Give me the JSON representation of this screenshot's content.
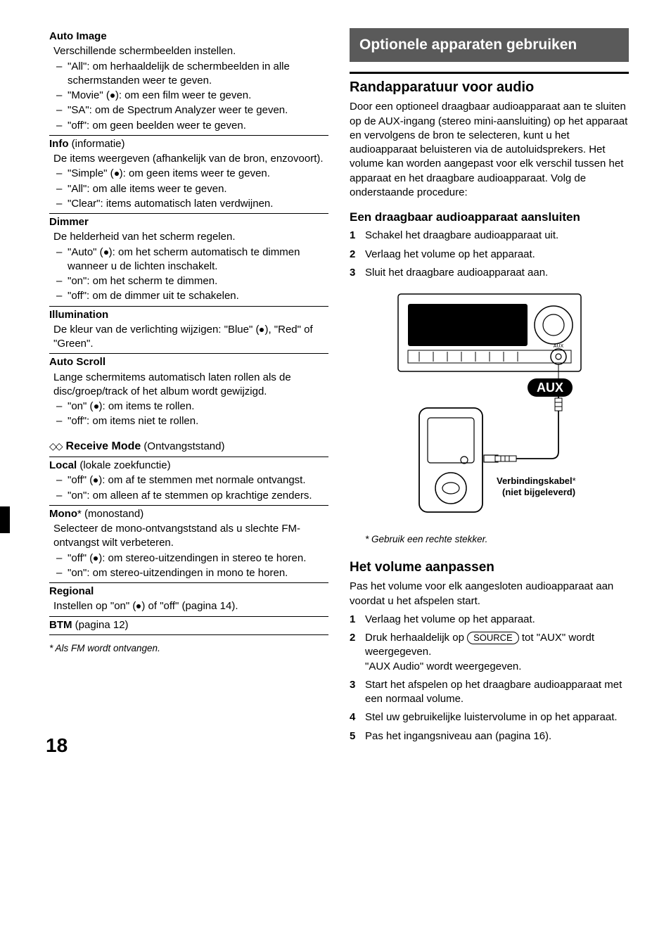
{
  "page_number": "18",
  "left": {
    "auto_image": {
      "title": "Auto Image",
      "desc": "Verschillende schermbeelden instellen.",
      "items": [
        {
          "text_before": "\"All\": om herhaaldelijk de schermbeelden in alle schermstanden weer te geven.",
          "dot": false
        },
        {
          "text_before": "\"Movie\" (",
          "dot": true,
          "text_after": "): om een film weer te geven."
        },
        {
          "text_before": "\"SA\": om de Spectrum Analyzer weer te geven.",
          "dot": false
        },
        {
          "text_before": "\"off\": om geen beelden weer te geven.",
          "dot": false
        }
      ]
    },
    "info": {
      "title": "Info",
      "paren": " (informatie)",
      "desc": "De items weergeven (afhankelijk van de bron, enzovoort).",
      "items": [
        {
          "text_before": "\"Simple\" (",
          "dot": true,
          "text_after": "): om geen items weer te geven."
        },
        {
          "text_before": "\"All\": om alle items weer te geven.",
          "dot": false
        },
        {
          "text_before": "\"Clear\": items automatisch laten verdwijnen.",
          "dot": false
        }
      ]
    },
    "dimmer": {
      "title": "Dimmer",
      "desc": "De helderheid van het scherm regelen.",
      "items": [
        {
          "text_before": "\"Auto\" (",
          "dot": true,
          "text_after": "): om het scherm automatisch te dimmen wanneer u de lichten inschakelt."
        },
        {
          "text_before": "\"on\": om het scherm te dimmen.",
          "dot": false
        },
        {
          "text_before": "\"off\": om de dimmer uit te schakelen.",
          "dot": false
        }
      ]
    },
    "illumination": {
      "title": "Illumination",
      "desc_before": "De kleur van de verlichting wijzigen: \"Blue\" (",
      "desc_after": "), \"Red\" of \"Green\"."
    },
    "auto_scroll": {
      "title": "Auto Scroll",
      "desc": "Lange schermitems automatisch laten rollen als de disc/groep/track of het album wordt gewijzigd.",
      "items": [
        {
          "text_before": "\"on\" (",
          "dot": true,
          "text_after": "): om items te rollen."
        },
        {
          "text_before": "\"off\": om items niet te rollen.",
          "dot": false
        }
      ]
    },
    "receive_mode": {
      "title": "Receive Mode",
      "paren": " (Ontvangststand)"
    },
    "local": {
      "title": "Local",
      "paren": " (lokale zoekfunctie)",
      "items": [
        {
          "text_before": "\"off\" (",
          "dot": true,
          "text_after": "): om af te stemmen met normale ontvangst."
        },
        {
          "text_before": "\"on\": om alleen af te stemmen op krachtige zenders.",
          "dot": false
        }
      ]
    },
    "mono": {
      "title": "Mono",
      "star": "*",
      "paren": " (monostand)",
      "desc": "Selecteer de mono-ontvangststand als u slechte FM-ontvangst wilt verbeteren.",
      "items": [
        {
          "text_before": "\"off\" (",
          "dot": true,
          "text_after": "): om stereo-uitzendingen in stereo te horen."
        },
        {
          "text_before": "\"on\": om stereo-uitzendingen in mono te horen.",
          "dot": false
        }
      ]
    },
    "regional": {
      "title": "Regional",
      "desc_before": "Instellen op \"on\" (",
      "desc_after": ") of \"off\" (pagina 14)."
    },
    "btm": {
      "title": "BTM",
      "paren": " (pagina 12)"
    },
    "footnote": "* Als FM wordt ontvangen."
  },
  "right": {
    "banner": "Optionele apparaten gebruiken",
    "h2": "Randapparatuur voor audio",
    "intro": "Door een optioneel draagbaar audioapparaat aan te sluiten op de AUX-ingang (stereo mini-aansluiting) op het apparaat en vervolgens de bron te selecteren, kunt u het audioapparaat beluisteren via de autoluidsprekers. Het volume kan worden aangepast voor elk verschil tussen het apparaat en het draagbare audioapparaat. Volg de onderstaande procedure:",
    "connect": {
      "h3": "Een draagbaar audioapparaat aansluiten",
      "steps": [
        {
          "n": "1",
          "t": "Schakel het draagbare audioapparaat uit."
        },
        {
          "n": "2",
          "t": "Verlaag het volume op het apparaat."
        },
        {
          "n": "3",
          "t": "Sluit het draagbare audioapparaat aan."
        }
      ]
    },
    "diagram": {
      "aux_badge": "AUX",
      "aux_label": "AUX",
      "cable_label1": "Verbindingskabel",
      "cable_star": "*",
      "cable_label2": "(niet bijgeleverd)",
      "caption": "* Gebruik een rechte stekker."
    },
    "volume": {
      "h3": "Het volume aanpassen",
      "intro": "Pas het volume voor elk aangesloten audioapparaat aan voordat u het afspelen start.",
      "steps": [
        {
          "n": "1",
          "t": "Verlaag het volume op het apparaat."
        },
        {
          "n": "2",
          "t_before": "Druk herhaaldelijk op ",
          "btn": "SOURCE",
          "t_after": " tot \"AUX\" wordt weergegeven.",
          "line2": "\"AUX Audio\" wordt weergegeven."
        },
        {
          "n": "3",
          "t": "Start het afspelen op het draagbare audioapparaat met een normaal volume."
        },
        {
          "n": "4",
          "t": "Stel uw gebruikelijke luistervolume in op het apparaat."
        },
        {
          "n": "5",
          "t": "Pas het ingangsniveau aan (pagina 16)."
        }
      ]
    }
  }
}
